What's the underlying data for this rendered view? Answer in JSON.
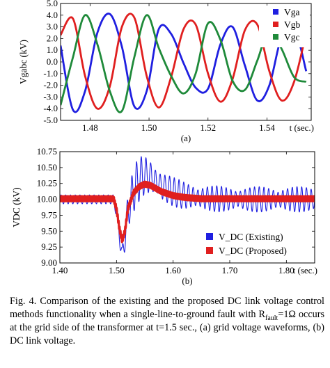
{
  "chart_data": [
    {
      "type": "line",
      "panel_label": "(a)",
      "ylabel": "Vgabc (kV)",
      "xlabel": "t (sec.)",
      "xlim": [
        1.47,
        1.555
      ],
      "ylim": [
        -5.0,
        5.0
      ],
      "xticks": [
        1.48,
        1.5,
        1.52,
        1.54
      ],
      "xtick_labels": [
        "1.48",
        "1.50",
        "1.52",
        "1.54"
      ],
      "yticks": [
        5.0,
        4.0,
        3.0,
        2.0,
        1.0,
        0.0,
        -1.0,
        -2.0,
        -3.0,
        -4.0,
        -5.0
      ],
      "ytick_labels": [
        "5.0",
        "4.0",
        "3.0",
        "2.0",
        "1.0",
        "0.0",
        "-1.0",
        "-2.0",
        "-3.0",
        "-4.0",
        "-5.0"
      ],
      "legend_position": "top-right",
      "series": [
        {
          "name": "Vga",
          "color": "#1f1fe0",
          "x": [
            1.47,
            1.4742,
            1.4783,
            1.4825,
            1.4867,
            1.4908,
            1.495,
            1.4992,
            1.5033,
            1.5075,
            1.5117,
            1.5158,
            1.52,
            1.5242,
            1.5283,
            1.5325,
            1.5367,
            1.5408,
            1.545,
            1.5492,
            1.5533
          ],
          "y": [
            1.4,
            -4.1,
            -2.5,
            2.5,
            4.1,
            1.3,
            -3.8,
            -2.5,
            2.8,
            2.4,
            -0.1,
            -2.2,
            -2.3,
            1.5,
            3.0,
            -0.3,
            -3.3,
            -2.0,
            2.2,
            3.0,
            -0.8
          ]
        },
        {
          "name": "Vgb",
          "color": "#e01f1f",
          "x": [
            1.47,
            1.4742,
            1.4783,
            1.4825,
            1.4867,
            1.4908,
            1.495,
            1.4992,
            1.5033,
            1.5075,
            1.5117,
            1.5158,
            1.52,
            1.5242,
            1.5283,
            1.5325,
            1.5367,
            1.5408,
            1.545,
            1.5492,
            1.5533
          ],
          "y": [
            2.3,
            3.7,
            -1.2,
            -4.0,
            -2.1,
            3.0,
            3.8,
            -1.2,
            -3.9,
            -1.3,
            2.8,
            3.2,
            -1.0,
            -3.4,
            -1.5,
            2.7,
            3.2,
            -0.8,
            -3.3,
            -1.7,
            2.5
          ]
        },
        {
          "name": "Vgc",
          "color": "#1f8a3a",
          "x": [
            1.47,
            1.4742,
            1.4783,
            1.4825,
            1.4867,
            1.4908,
            1.495,
            1.4992,
            1.5033,
            1.5075,
            1.5117,
            1.5158,
            1.52,
            1.5242,
            1.5283,
            1.5325,
            1.5367,
            1.5408,
            1.545,
            1.5492,
            1.5533
          ],
          "y": [
            -3.7,
            0.4,
            4.0,
            1.5,
            -2.5,
            -4.2,
            0.4,
            4.0,
            1.2,
            -1.2,
            -2.7,
            -1.0,
            3.3,
            1.9,
            -1.6,
            -2.4,
            0.1,
            2.8,
            1.1,
            -1.3,
            -1.7
          ]
        }
      ]
    },
    {
      "type": "line",
      "panel_label": "(b)",
      "ylabel": "VDC (kV)",
      "xlabel": "t (sec.)",
      "xlim": [
        1.4,
        1.85
      ],
      "ylim": [
        9.0,
        10.75
      ],
      "xticks": [
        1.4,
        1.5,
        1.6,
        1.7,
        1.8
      ],
      "xtick_labels": [
        "1.40",
        "1.50",
        "1.60",
        "1.70",
        "1.80"
      ],
      "yticks": [
        10.75,
        10.5,
        10.25,
        10.0,
        9.75,
        9.5,
        9.25,
        9.0
      ],
      "ytick_labels": [
        "10.75",
        "10.50",
        "10.25",
        "10.00",
        "9.75",
        "9.50",
        "9.25",
        "9.00"
      ],
      "legend_position": "bottom-right",
      "series": [
        {
          "name": "V_DC (Existing)",
          "color": "#1f1fe0",
          "x": [
            1.4,
            1.45,
            1.495,
            1.5,
            1.505,
            1.51,
            1.515,
            1.52,
            1.53,
            1.54,
            1.55,
            1.56,
            1.57,
            1.58,
            1.6,
            1.62,
            1.65,
            1.7,
            1.75,
            1.8,
            1.85
          ],
          "y": [
            10.0,
            10.0,
            10.0,
            9.8,
            9.45,
            9.1,
            9.4,
            9.8,
            10.15,
            10.32,
            10.38,
            10.35,
            10.28,
            10.2,
            10.12,
            10.06,
            10.02,
            10.0,
            10.0,
            10.0,
            10.0
          ],
          "ripple_amplitude": [
            0.07,
            0.07,
            0.07,
            0.1,
            0.12,
            0.15,
            0.2,
            0.28,
            0.35,
            0.35,
            0.32,
            0.3,
            0.28,
            0.26,
            0.23,
            0.22,
            0.21,
            0.2,
            0.2,
            0.2,
            0.2
          ]
        },
        {
          "name": "V_DC (Proposed)",
          "color": "#e01f1f",
          "x": [
            1.4,
            1.45,
            1.495,
            1.5,
            1.505,
            1.51,
            1.515,
            1.52,
            1.53,
            1.54,
            1.55,
            1.56,
            1.57,
            1.58,
            1.6,
            1.62,
            1.65,
            1.7,
            1.75,
            1.8,
            1.85
          ],
          "y": [
            10.01,
            10.01,
            10.01,
            9.85,
            9.55,
            9.35,
            9.5,
            9.85,
            10.1,
            10.2,
            10.24,
            10.22,
            10.17,
            10.12,
            10.06,
            10.03,
            10.01,
            10.01,
            10.01,
            10.01,
            10.01
          ],
          "ripple_amplitude": [
            0.04,
            0.04,
            0.04,
            0.04,
            0.04,
            0.04,
            0.04,
            0.04,
            0.04,
            0.04,
            0.04,
            0.04,
            0.04,
            0.04,
            0.04,
            0.04,
            0.04,
            0.04,
            0.04,
            0.04,
            0.04
          ]
        }
      ]
    }
  ],
  "caption": {
    "line1": "Fig. 4. Comparison of the existing and the proposed DC link voltage control methods functionality when a single-line-to-ground fault with R",
    "sub": "fault",
    "line2": "=1Ω occurs at the grid side of the transformer at t=1.5 sec., (a) grid voltage waveforms, (b) DC link voltage."
  }
}
